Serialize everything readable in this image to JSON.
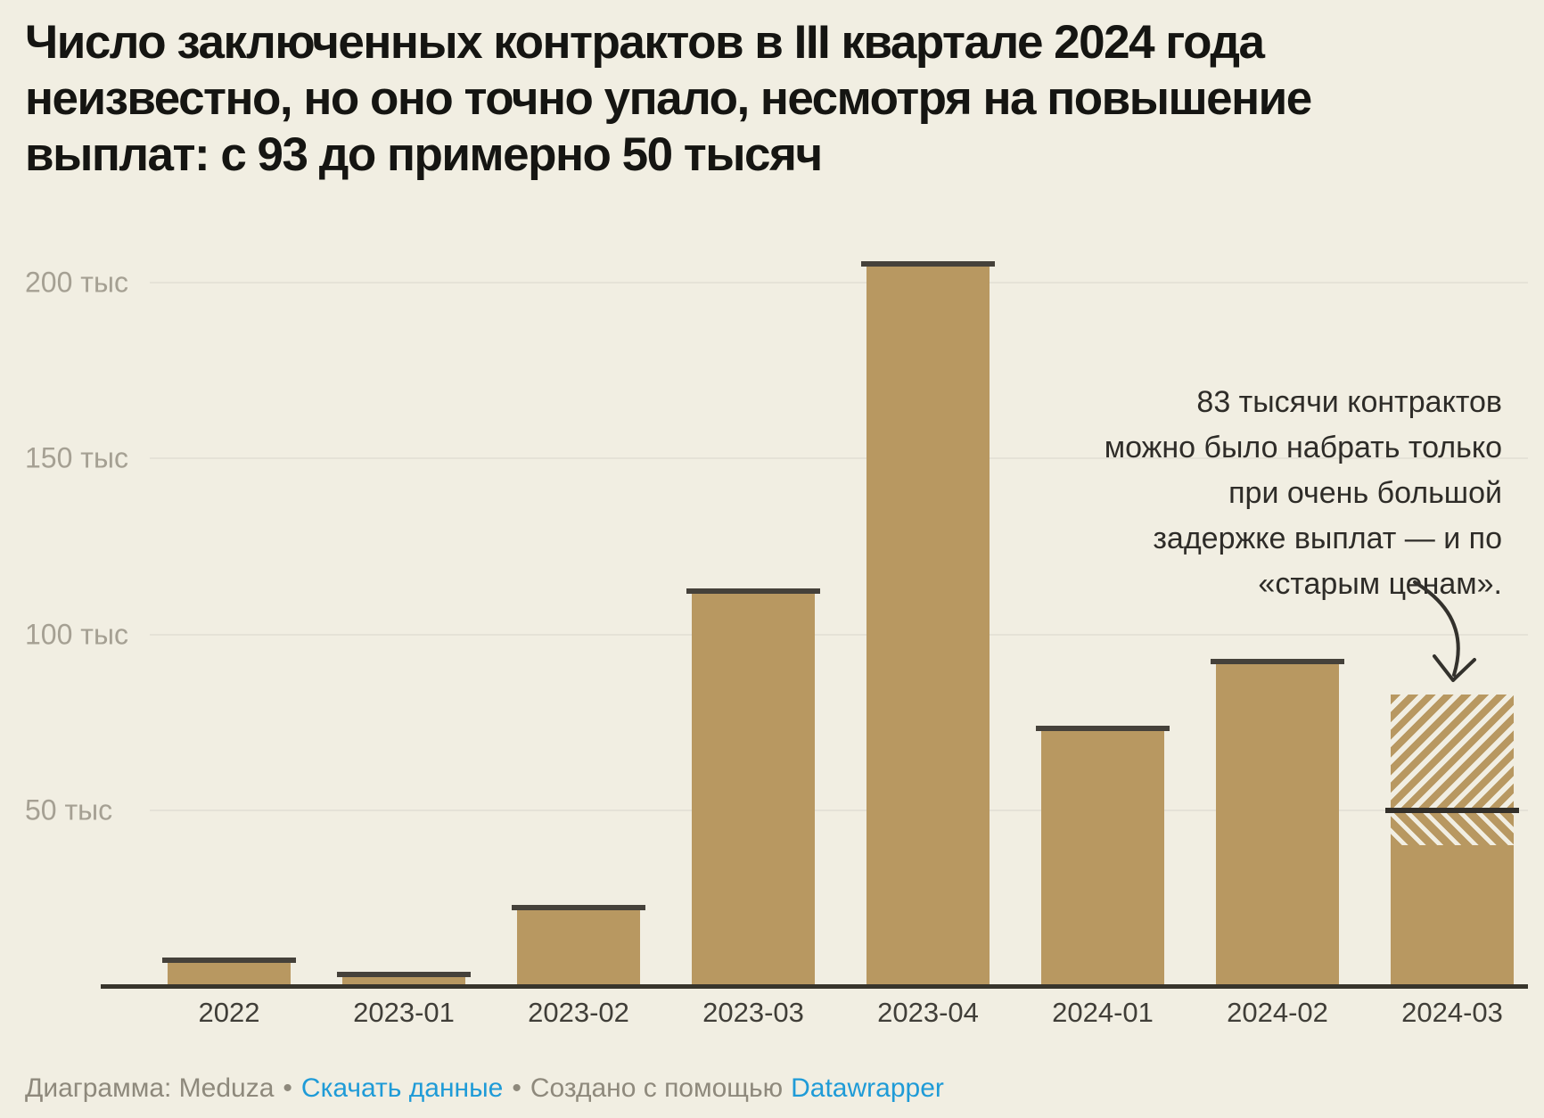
{
  "title_lines": [
    "Число заключенных контрактов в III квартале 2024 года",
    "неизвестно, но оно точно упало, несмотря на повышение",
    "выплат: с 93 до примерно 50 тысяч"
  ],
  "chart_data": {
    "type": "bar",
    "title": "Число заключенных контрактов в III квартале 2024 года неизвестно, но оно точно упало, несмотря на повышение выплат: с 93 до примерно 50 тысяч",
    "unit": "тыс",
    "categories": [
      "2022",
      "2023-01",
      "2023-02",
      "2023-03",
      "2023-04",
      "2024-01",
      "2024-02",
      "2024-03"
    ],
    "values": [
      8,
      4,
      23,
      113,
      206,
      74,
      93,
      50
    ],
    "bars": [
      {
        "label": "2022",
        "value": 8
      },
      {
        "label": "2023-01",
        "value": 4
      },
      {
        "label": "2023-02",
        "value": 23
      },
      {
        "label": "2023-03",
        "value": 113
      },
      {
        "label": "2023-04",
        "value": 206
      },
      {
        "label": "2024-01",
        "value": 74
      },
      {
        "label": "2024-02",
        "value": 93
      },
      {
        "label": "2024-03",
        "solid_value": 40,
        "estimate_value": 50,
        "upper_value": 83,
        "hatched": true
      }
    ],
    "ytick_labels": [
      "50 тыс",
      "100 тыс",
      "150 тыс",
      "200 тыс"
    ],
    "ytick_values": [
      50,
      100,
      150,
      200
    ],
    "ylim": [
      0,
      210
    ],
    "grid": true,
    "legend_position": "none",
    "xlabel": "",
    "ylabel": ""
  },
  "annotation": {
    "lines": [
      "83 тысячи контрактов",
      "можно было набрать только",
      "при очень большой",
      "задержке выплат — и по",
      "«старым ценам»."
    ],
    "text": "83 тысячи контрактов можно было набрать только при очень большой задержке выплат — и по «старым ценам»."
  },
  "footer": {
    "source": "Диаграмма: Meduza",
    "separator": "•",
    "download_label": "Скачать данные",
    "created_prefix": "Создано с помощью",
    "tool_label": "Datawrapper"
  },
  "colors": {
    "background": "#f1eee2",
    "bar_fill": "#b89861",
    "bar_cap": "#45413a",
    "baseline": "#38352c",
    "estimate_line": "#33302a",
    "gridline": "#e5e2d7",
    "y_label": "#a5a093",
    "x_label": "#403e38",
    "title": "#151512",
    "annotation": "#2e2c28",
    "footer_text": "#8e897c",
    "link_blue": "#1f9bd7"
  }
}
